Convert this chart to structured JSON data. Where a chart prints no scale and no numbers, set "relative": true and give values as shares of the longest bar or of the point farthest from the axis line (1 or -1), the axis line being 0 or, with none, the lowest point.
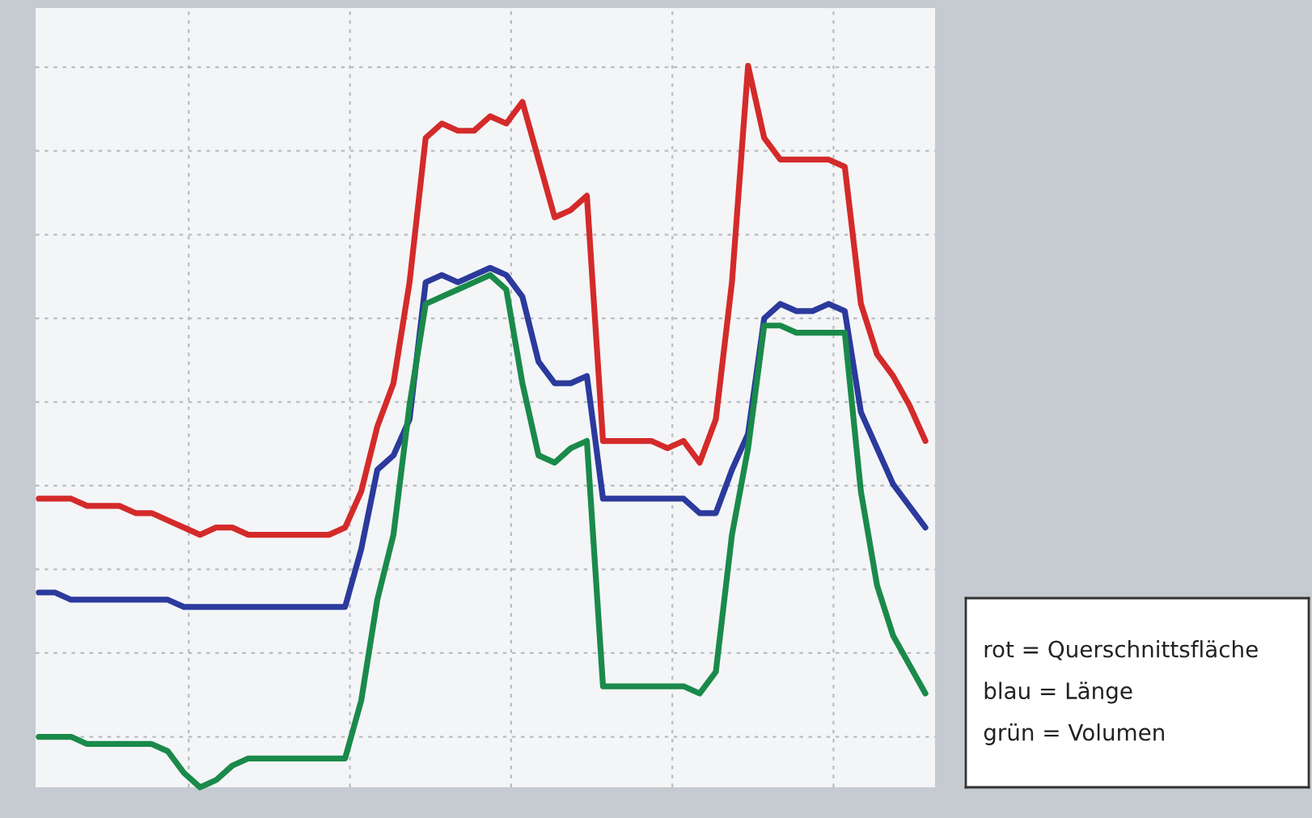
{
  "chart_data": {
    "type": "line",
    "relative": true,
    "grid": true,
    "categories": [
      null,
      null,
      null,
      null,
      null,
      null,
      null,
      null,
      null,
      null,
      null,
      null,
      null,
      null,
      null,
      null,
      null,
      null,
      null,
      null,
      null,
      null,
      null,
      null,
      null,
      null,
      null,
      null,
      null,
      null,
      null,
      null,
      null,
      null,
      null,
      null,
      null,
      null,
      null,
      null,
      null,
      null,
      null,
      null,
      null,
      null,
      null,
      null,
      null,
      null,
      null,
      null,
      null,
      null,
      null,
      null
    ],
    "series": [
      {
        "color": "#d42a2a",
        "values": [
          0.4,
          0.4,
          0.4,
          0.39,
          0.39,
          0.39,
          0.38,
          0.38,
          0.37,
          0.36,
          0.35,
          0.36,
          0.36,
          0.35,
          0.35,
          0.35,
          0.35,
          0.35,
          0.35,
          0.36,
          0.41,
          0.5,
          0.56,
          0.7,
          0.9,
          0.92,
          0.91,
          0.91,
          0.93,
          0.92,
          0.95,
          0.87,
          0.79,
          0.8,
          0.82,
          0.48,
          0.48,
          0.48,
          0.48,
          0.47,
          0.48,
          0.45,
          0.51,
          0.7,
          1.0,
          0.9,
          0.87,
          0.87,
          0.87,
          0.87,
          0.86,
          0.67,
          0.6,
          0.57,
          0.53,
          0.48
        ]
      },
      {
        "color": "#2b3a9c",
        "values": [
          0.27,
          0.27,
          0.26,
          0.26,
          0.26,
          0.26,
          0.26,
          0.26,
          0.26,
          0.25,
          0.25,
          0.25,
          0.25,
          0.25,
          0.25,
          0.25,
          0.25,
          0.25,
          0.25,
          0.25,
          0.33,
          0.44,
          0.46,
          0.51,
          0.7,
          0.71,
          0.7,
          0.71,
          0.72,
          0.71,
          0.68,
          0.59,
          0.56,
          0.56,
          0.57,
          0.4,
          0.4,
          0.4,
          0.4,
          0.4,
          0.4,
          0.38,
          0.38,
          0.44,
          0.49,
          0.65,
          0.67,
          0.66,
          0.66,
          0.67,
          0.66,
          0.52,
          0.47,
          0.42,
          0.39,
          0.36
        ]
      },
      {
        "color": "#1a8a4a",
        "values": [
          0.07,
          0.07,
          0.07,
          0.06,
          0.06,
          0.06,
          0.06,
          0.06,
          0.05,
          0.02,
          0.0,
          0.01,
          0.03,
          0.04,
          0.04,
          0.04,
          0.04,
          0.04,
          0.04,
          0.04,
          0.12,
          0.26,
          0.35,
          0.53,
          0.67,
          0.68,
          0.69,
          0.7,
          0.71,
          0.69,
          0.56,
          0.46,
          0.45,
          0.47,
          0.48,
          0.14,
          0.14,
          0.14,
          0.14,
          0.14,
          0.14,
          0.13,
          0.16,
          0.35,
          0.47,
          0.64,
          0.64,
          0.63,
          0.63,
          0.63,
          0.63,
          0.41,
          0.28,
          0.21,
          0.17,
          0.13
        ]
      }
    ],
    "annotations": [
      "rot = Querschnittsfläche",
      "blau = Länge",
      "grün = Volumen"
    ],
    "line_style": "solid",
    "marker": "none"
  }
}
